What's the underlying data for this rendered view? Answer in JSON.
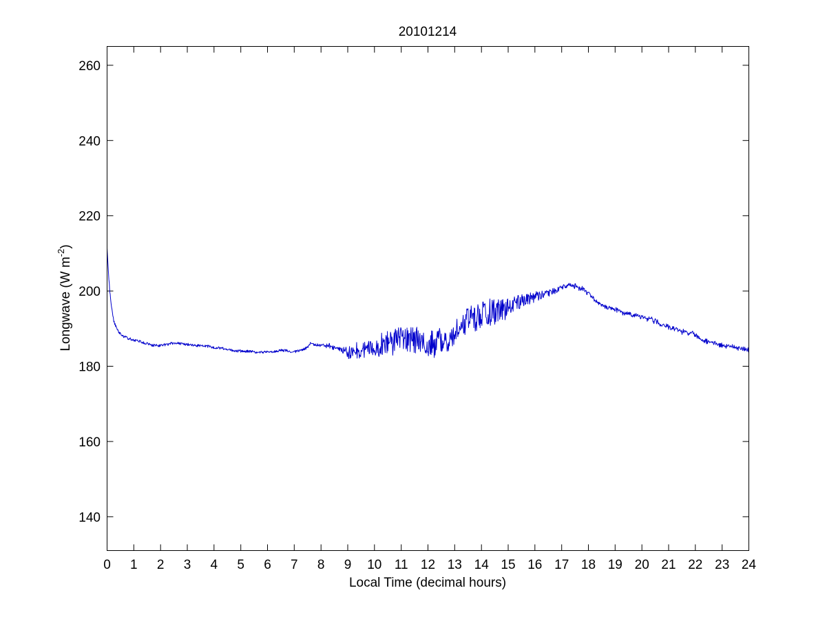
{
  "chart_data": {
    "type": "line",
    "title": "20101214",
    "xlabel": "Local Time (decimal hours)",
    "ylabel": "Longwave (W m",
    "ylabel_sup": "-2",
    "ylabel_suffix": ")",
    "xlim": [
      0,
      24
    ],
    "ylim": [
      131,
      265
    ],
    "xticks": [
      0,
      1,
      2,
      3,
      4,
      5,
      6,
      7,
      8,
      9,
      10,
      11,
      12,
      13,
      14,
      15,
      16,
      17,
      18,
      19,
      20,
      21,
      22,
      23,
      24
    ],
    "xtick_labels": [
      "0",
      "1",
      "2",
      "3",
      "4",
      "5",
      "6",
      "7",
      "8",
      "9",
      "10",
      "11",
      "12",
      "13",
      "14",
      "15",
      "16",
      "17",
      "18",
      "19",
      "20",
      "21",
      "22",
      "23",
      "24"
    ],
    "yticks": [
      140,
      160,
      180,
      200,
      220,
      240,
      260
    ],
    "ytick_labels": [
      "140",
      "160",
      "180",
      "200",
      "220",
      "240",
      "260"
    ],
    "grid": false,
    "legend": "none",
    "series": [
      {
        "color": "#0000cc",
        "x": [
          0.0,
          0.05,
          0.1,
          0.15,
          0.2,
          0.25,
          0.3,
          0.4,
          0.5,
          0.6,
          0.75,
          1.0,
          1.25,
          1.5,
          1.75,
          2.0,
          2.25,
          2.5,
          2.75,
          3.0,
          3.25,
          3.5,
          3.75,
          4.0,
          4.25,
          4.5,
          4.75,
          5.0,
          5.25,
          5.5,
          5.75,
          6.0,
          6.25,
          6.5,
          6.75,
          7.0,
          7.25,
          7.5,
          7.6,
          7.75,
          8.0,
          8.25,
          8.5,
          8.75,
          9.0,
          9.25,
          9.5,
          9.75,
          10.0,
          10.25,
          10.5,
          10.75,
          11.0,
          11.25,
          11.5,
          11.75,
          12.0,
          12.25,
          12.5,
          12.75,
          13.0,
          13.25,
          13.5,
          13.75,
          14.0,
          14.25,
          14.5,
          14.75,
          15.0,
          15.25,
          15.5,
          15.75,
          16.0,
          16.25,
          16.5,
          16.75,
          17.0,
          17.25,
          17.5,
          17.75,
          18.0,
          18.25,
          18.5,
          18.75,
          19.0,
          19.25,
          19.5,
          19.75,
          20.0,
          20.25,
          20.5,
          20.75,
          21.0,
          21.25,
          21.5,
          21.75,
          22.0,
          22.25,
          22.5,
          22.75,
          23.0,
          23.25,
          23.5,
          23.75,
          24.0
        ],
        "y": [
          211,
          205,
          200,
          197,
          194,
          192,
          191,
          189.5,
          188.5,
          188,
          187.5,
          187,
          186.5,
          186,
          185.5,
          185.5,
          185.8,
          186.2,
          186,
          185.8,
          185.5,
          185.5,
          185.3,
          185,
          184.8,
          184.5,
          184.2,
          184,
          184,
          183.8,
          183.7,
          183.8,
          184,
          184.2,
          184.1,
          183.8,
          184.2,
          185,
          186,
          185.8,
          185.5,
          185.5,
          185,
          184.5,
          183.5,
          184,
          184.5,
          184.8,
          185,
          185.5,
          186,
          186.5,
          187,
          187,
          187,
          186.5,
          186.5,
          186,
          186.5,
          187.5,
          189,
          191,
          192.5,
          193,
          193.5,
          194,
          194.5,
          195,
          195.5,
          196.5,
          197.5,
          198,
          198.5,
          199,
          199.5,
          200,
          201,
          201.7,
          201.3,
          200.5,
          199.5,
          197.5,
          196.2,
          195.5,
          195,
          194.2,
          193.8,
          193.5,
          193,
          192.5,
          192,
          191,
          190.5,
          190,
          189.2,
          189,
          188.5,
          187,
          186.5,
          186,
          185.5,
          185.2,
          185,
          184.6,
          184.3
        ],
        "noise": [
          0,
          0,
          0,
          0,
          0,
          0,
          0,
          0,
          0,
          0,
          0,
          0,
          0,
          0,
          0,
          0,
          0,
          0,
          0,
          0,
          0,
          0,
          0,
          0,
          0,
          0,
          0,
          0,
          0,
          0,
          0,
          0,
          0,
          0,
          0,
          0,
          0,
          0,
          0,
          0,
          0,
          0.5,
          0.5,
          1,
          1.5,
          2,
          2.5,
          2.5,
          2.5,
          3,
          3.5,
          3.5,
          3.5,
          3.5,
          3.5,
          3.5,
          3.5,
          3.5,
          3.5,
          3.5,
          3.5,
          3.5,
          3.5,
          3.5,
          3.5,
          3.5,
          3.5,
          3,
          2.5,
          2.5,
          2,
          1.5,
          1.5,
          1,
          1,
          0.8,
          0.6,
          0.5,
          0.5,
          0.5,
          0.5,
          0.5,
          0.5,
          0.5,
          0.5,
          0.5,
          0.5,
          0.5,
          0.5,
          0.5,
          0.5,
          0.5,
          0.5,
          0.5,
          0.5,
          0.5,
          0.5,
          0.5,
          0.5,
          0.5,
          0.5,
          0.5,
          0.5,
          0.5,
          0.5
        ]
      }
    ]
  }
}
